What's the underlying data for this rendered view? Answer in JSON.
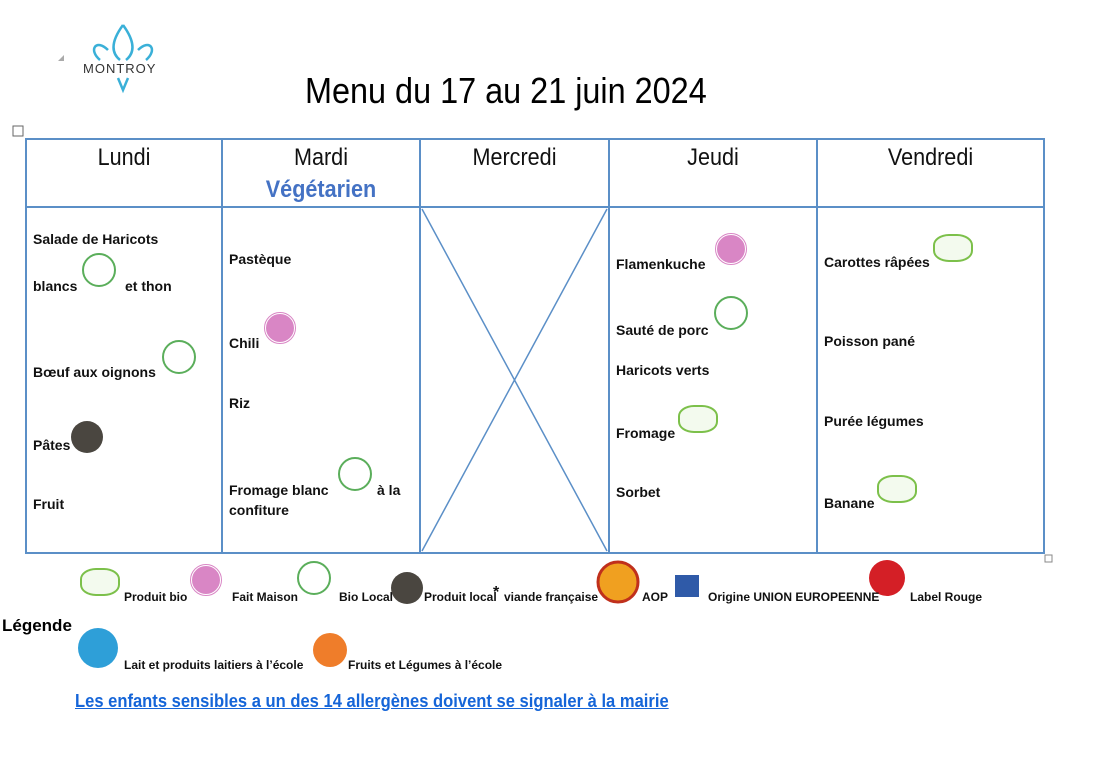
{
  "logo": "MONTROY",
  "title": "Menu du 17 au 21 juin 2024",
  "days": [
    {
      "name": "Lundi",
      "items": [
        "Salade de Haricots",
        "blancs",
        "et thon",
        "Bœuf aux oignons",
        "Pâtes",
        "Fruit"
      ]
    },
    {
      "name": "Mardi",
      "subtitle": "Végétarien",
      "items": [
        "Pastèque",
        "Chili",
        "Riz",
        "Fromage blanc",
        "à la",
        "confiture"
      ]
    },
    {
      "name": "Mercredi",
      "items": []
    },
    {
      "name": "Jeudi",
      "items": [
        "Flamenkuche",
        "Sauté de porc",
        "Haricots verts",
        "Fromage",
        "Sorbet"
      ]
    },
    {
      "name": "Vendredi",
      "items": [
        "Carottes râpées",
        "Poisson pané",
        "Purée légumes",
        "Banane"
      ]
    }
  ],
  "legend": {
    "title": "Légende",
    "items": [
      "Produit bio",
      "Fait Maison",
      "Bio Local",
      "Produit local",
      "*",
      "viande française",
      "AOP",
      "Origine UNION EUROPEENNE",
      "Label Rouge",
      "Lait et produits laitiers à l’école",
      "Fruits et Légumes à l’école"
    ]
  },
  "notice": "Les enfants sensibles a un des 14 allergènes doivent se signaler à la mairie"
}
